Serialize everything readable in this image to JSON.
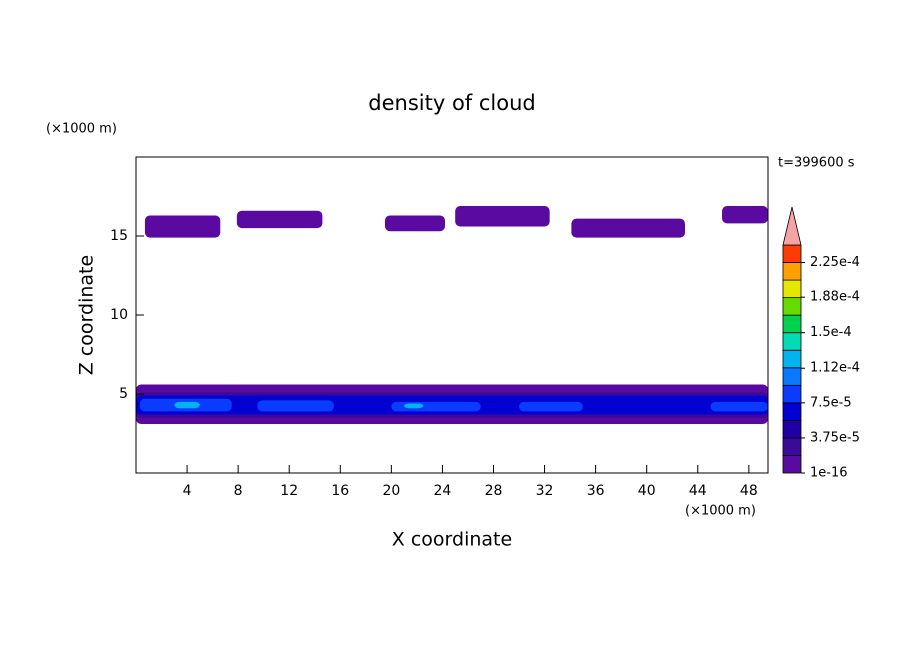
{
  "chart_data": {
    "type": "contour",
    "title": "density of cloud",
    "time_label": "t=399600 s",
    "xlabel": "X coordinate",
    "ylabel": "Z coordinate",
    "x_unit": "(×1000 m)",
    "y_unit": "(×1000 m)",
    "xlim": [
      0,
      49.5
    ],
    "ylim": [
      0,
      20
    ],
    "xticks": [
      4,
      8,
      12,
      16,
      20,
      24,
      28,
      32,
      36,
      40,
      44,
      48
    ],
    "yticks": [
      5,
      10,
      15
    ],
    "clim": [
      1e-16,
      0.00024375
    ],
    "colors": [
      "#5a0aa0",
      "#3c0a9b",
      "#1e00a5",
      "#0000d2",
      "#0a3cff",
      "#0a78ff",
      "#00b4f0",
      "#00dcb4",
      "#00d250",
      "#64dc00",
      "#e6e600",
      "#ffa000",
      "#ff3c00"
    ],
    "over_color": "#f4a4a4",
    "cbar_ticks": [
      {
        "value": 1e-16,
        "label": "1e-16"
      },
      {
        "value": 3.75e-05,
        "label": "3.75e-5"
      },
      {
        "value": 7.5e-05,
        "label": "7.5e-5"
      },
      {
        "value": 0.000112,
        "label": "1.12e-4"
      },
      {
        "value": 0.00015,
        "label": "1.5e-4"
      },
      {
        "value": 0.000188,
        "label": "1.88e-4"
      },
      {
        "value": 0.000225,
        "label": "2.25e-4"
      }
    ],
    "regions": [
      {
        "x": [
          0.7,
          6.6
        ],
        "z": [
          14.9,
          16.3
        ],
        "value": 1e-05
      },
      {
        "x": [
          7.9,
          14.6
        ],
        "z": [
          15.5,
          16.6
        ],
        "value": 1e-05
      },
      {
        "x": [
          19.5,
          24.2
        ],
        "z": [
          15.3,
          16.3
        ],
        "value": 1e-05
      },
      {
        "x": [
          25,
          32.4
        ],
        "z": [
          15.6,
          16.9
        ],
        "value": 1e-05
      },
      {
        "x": [
          34.1,
          43
        ],
        "z": [
          14.9,
          16.1
        ],
        "value": 1e-05
      },
      {
        "x": [
          45.9,
          49.5
        ],
        "z": [
          15.8,
          16.9
        ],
        "value": 1e-05
      },
      {
        "x": [
          0,
          49.5
        ],
        "z": [
          3.1,
          5.6
        ],
        "value": 1e-05
      },
      {
        "x": [
          0,
          49.5
        ],
        "z": [
          3.5,
          5.1
        ],
        "value": 3e-05
      },
      {
        "x": [
          0,
          49.5
        ],
        "z": [
          3.7,
          4.9
        ],
        "value": 6e-05
      },
      {
        "x": [
          0.3,
          7.5
        ],
        "z": [
          3.9,
          4.7
        ],
        "value": 8e-05
      },
      {
        "x": [
          9.5,
          15.5
        ],
        "z": [
          3.9,
          4.6
        ],
        "value": 8e-05
      },
      {
        "x": [
          20,
          27
        ],
        "z": [
          3.9,
          4.5
        ],
        "value": 8e-05
      },
      {
        "x": [
          30,
          35
        ],
        "z": [
          3.9,
          4.5
        ],
        "value": 8e-05
      },
      {
        "x": [
          45,
          49.5
        ],
        "z": [
          3.9,
          4.5
        ],
        "value": 8e-05
      },
      {
        "x": [
          3,
          5
        ],
        "z": [
          4.1,
          4.5
        ],
        "value": 0.00012
      },
      {
        "x": [
          21,
          22.5
        ],
        "z": [
          4.1,
          4.4
        ],
        "value": 0.00012
      }
    ]
  }
}
